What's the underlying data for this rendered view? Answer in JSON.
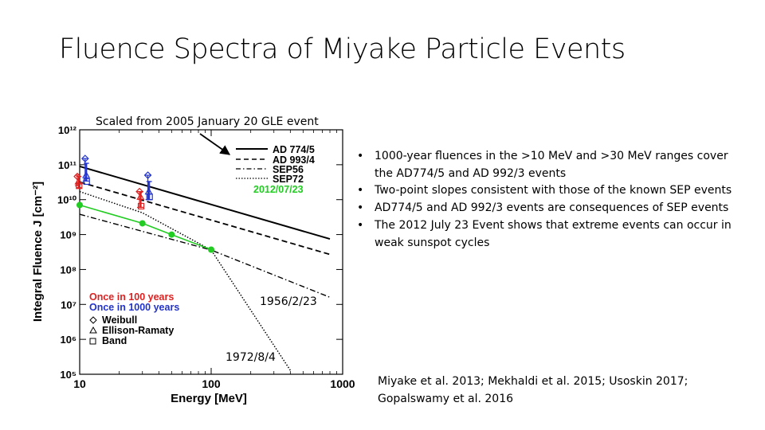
{
  "slide": {
    "title": "Fluence Spectra of Miyake Particle Events",
    "source_note": "Scaled from 2005 January 20 GLE event",
    "annotation_1956": "1956/2/23",
    "annotation_1972": "1972/8/4",
    "bullets": [
      "1000-year fluences in the >10 MeV and >30 MeV ranges cover the AD774/5 and AD 992/3 events",
      "Two-point slopes consistent with those of the known SEP events",
      "AD774/5 and AD 992/3 events are consequences of SEP events",
      "The 2012 July 23 Event shows that extreme events can occur in weak sunspot cycles"
    ],
    "references": "Miyake et al. 2013; Mekhaldi et al. 2015; Usoskin 2017; Gopalswamy et al. 2016"
  },
  "chart_data": {
    "type": "line",
    "xlabel": "Energy [MeV]",
    "ylabel": "Integral Fluence J [cm⁻²]",
    "x_scale": "log",
    "y_scale": "log",
    "xlim": [
      10,
      1000
    ],
    "ylim": [
      100000,
      1000000000000
    ],
    "x_ticks": [
      {
        "value": 10,
        "label": "10"
      },
      {
        "value": 100,
        "label": "100"
      },
      {
        "value": 1000,
        "label": "1000"
      }
    ],
    "y_ticks": [
      {
        "value": 100000,
        "label": "10⁵"
      },
      {
        "value": 1000000,
        "label": "10⁶"
      },
      {
        "value": 10000000,
        "label": "10⁷"
      },
      {
        "value": 100000000,
        "label": "10⁸"
      },
      {
        "value": 1000000000,
        "label": "10⁹"
      },
      {
        "value": 10000000000,
        "label": "10¹⁰"
      },
      {
        "value": 100000000000,
        "label": "10¹¹"
      },
      {
        "value": 1000000000000,
        "label": "10¹²"
      }
    ],
    "series": [
      {
        "name": "AD 774/5",
        "style": "solid",
        "color": "#000000",
        "x": [
          10,
          800
        ],
        "y": [
          90000000000,
          750000000
        ]
      },
      {
        "name": "AD 993/4",
        "style": "dashed",
        "color": "#000000",
        "x": [
          10,
          800
        ],
        "y": [
          32000000000,
          270000000
        ]
      },
      {
        "name": "SEP56",
        "style": "dashdot",
        "color": "#000000",
        "x": [
          10,
          100,
          800
        ],
        "y": [
          3800000000,
          360000000,
          16000000
        ]
      },
      {
        "name": "SEP72",
        "style": "dotted",
        "color": "#000000",
        "x": [
          10,
          30,
          100,
          400
        ],
        "y": [
          17000000000,
          4200000000,
          360000000,
          130000
        ]
      },
      {
        "name": "2012/07/23",
        "style": "solid-markers",
        "color": "#22cc22",
        "x": [
          10,
          30,
          50,
          100
        ],
        "y": [
          7000000000,
          2100000000,
          1000000000,
          370000000
        ]
      }
    ],
    "error_points": [
      {
        "group": "Once in 100 years",
        "method": "Weibull",
        "color": "#dd2222",
        "x": 9.6,
        "y": 46000000000,
        "ymin": 25000000000,
        "ymax": 50000000000
      },
      {
        "group": "Once in 100 years",
        "method": "Ellison-Ramaty",
        "color": "#dd2222",
        "x": 9.8,
        "y": 33000000000,
        "ymin": 22000000000,
        "ymax": 46000000000
      },
      {
        "group": "Once in 100 years",
        "method": "Band",
        "color": "#dd2222",
        "x": 9.9,
        "y": 25000000000,
        "ymin": 22000000000,
        "ymax": 46000000000
      },
      {
        "group": "Once in 1000 years",
        "method": "Weibull",
        "color": "#2233cc",
        "x": 11,
        "y": 150000000000,
        "ymin": 34000000000,
        "ymax": 150000000000
      },
      {
        "group": "Once in 1000 years",
        "method": "Ellison-Ramaty",
        "color": "#2233cc",
        "x": 11.2,
        "y": 50000000000,
        "ymin": 34000000000,
        "ymax": 110000000000
      },
      {
        "group": "Once in 1000 years",
        "method": "Band",
        "color": "#2233cc",
        "x": 11.3,
        "y": 33000000000,
        "ymin": 34000000000,
        "ymax": 110000000000
      },
      {
        "group": "Once in 100 years",
        "method": "Weibull",
        "color": "#dd2222",
        "x": 28.5,
        "y": 17000000000,
        "ymin": 6000000000,
        "ymax": 17000000000
      },
      {
        "group": "Once in 100 years",
        "method": "Ellison-Ramaty",
        "color": "#dd2222",
        "x": 29,
        "y": 12000000000,
        "ymin": 6000000000,
        "ymax": 17000000000
      },
      {
        "group": "Once in 100 years",
        "method": "Band",
        "color": "#dd2222",
        "x": 29.3,
        "y": 6500000000,
        "ymin": 6000000000,
        "ymax": 17000000000
      },
      {
        "group": "Once in 1000 years",
        "method": "Weibull",
        "color": "#2233cc",
        "x": 33,
        "y": 50000000000,
        "ymin": 10000000000,
        "ymax": 50000000000
      },
      {
        "group": "Once in 1000 years",
        "method": "Ellison-Ramaty",
        "color": "#2233cc",
        "x": 33.5,
        "y": 17000000000,
        "ymin": 10000000000,
        "ymax": 33000000000
      },
      {
        "group": "Once in 1000 years",
        "method": "Band",
        "color": "#2233cc",
        "x": 34,
        "y": 12000000000,
        "ymin": 10000000000,
        "ymax": 33000000000
      }
    ],
    "legend": {
      "position": "top-right",
      "line_entries": [
        "AD 774/5",
        "AD 993/4",
        "SEP56",
        "SEP72",
        "2012/07/23"
      ],
      "group_entries": [
        {
          "label": "Once in 100 years",
          "color": "#dd2222"
        },
        {
          "label": "Once in 1000 years",
          "color": "#2233cc"
        }
      ],
      "marker_entries": [
        {
          "label": "Weibull",
          "symbol": "diamond"
        },
        {
          "label": "Ellison-Ramaty",
          "symbol": "triangle"
        },
        {
          "label": "Band",
          "symbol": "square"
        }
      ]
    }
  }
}
